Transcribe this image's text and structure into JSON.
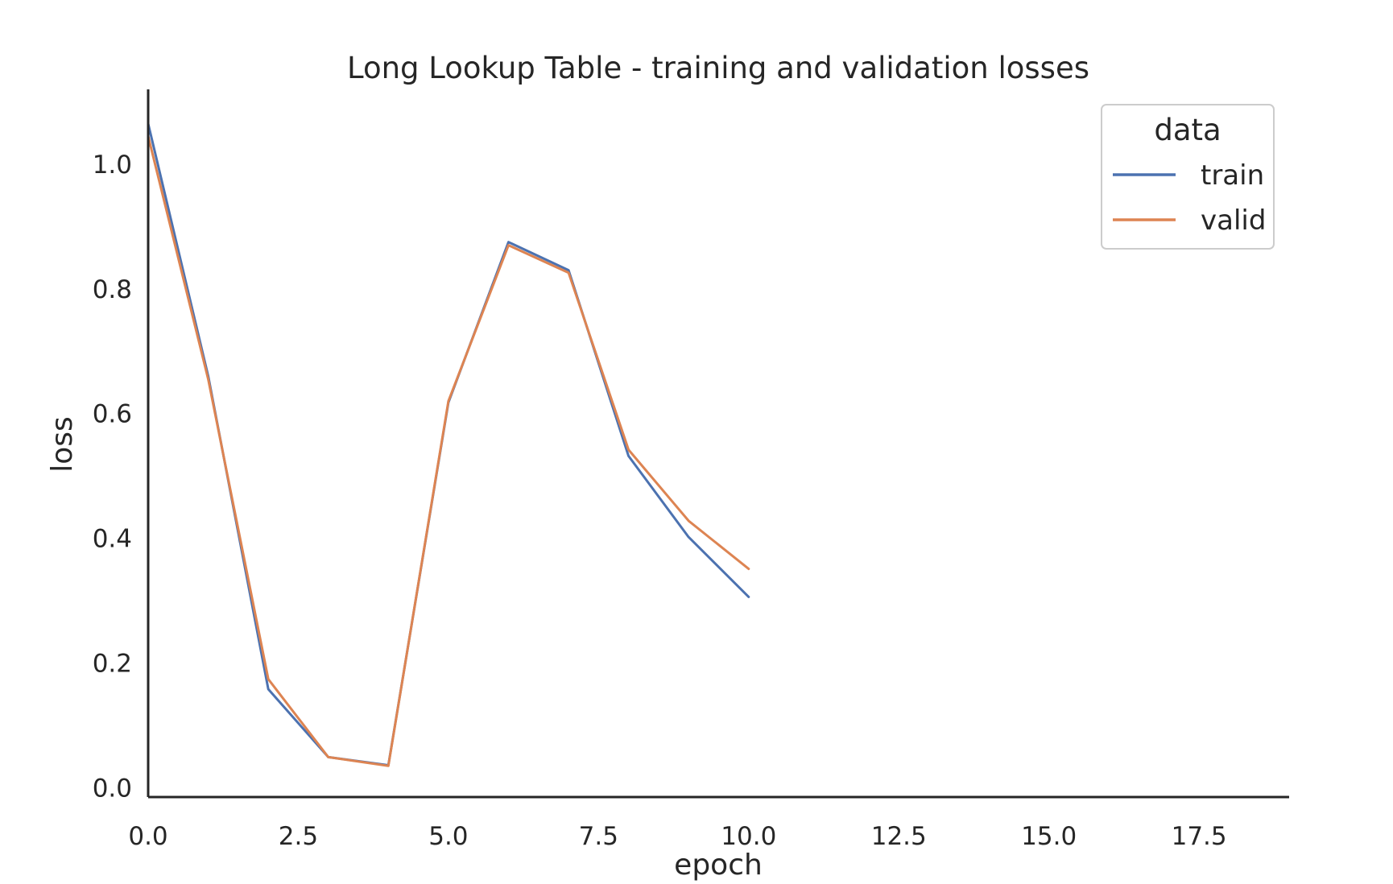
{
  "chart_data": {
    "type": "line",
    "title": "Long Lookup Table - training and validation losses",
    "xlabel": "epoch",
    "ylabel": "loss",
    "xlim": [
      0,
      19
    ],
    "ylim": [
      -0.015,
      1.12
    ],
    "xticks": [
      "0.0",
      "2.5",
      "5.0",
      "7.5",
      "10.0",
      "12.5",
      "15.0",
      "17.5"
    ],
    "xtick_values": [
      0,
      2.5,
      5,
      7.5,
      10,
      12.5,
      15,
      17.5
    ],
    "yticks": [
      "0.0",
      "0.2",
      "0.4",
      "0.6",
      "0.8",
      "1.0"
    ],
    "ytick_values": [
      0,
      0.2,
      0.4,
      0.6,
      0.8,
      1.0
    ],
    "grid": false,
    "legend": {
      "title": "data",
      "placement": "top-right"
    },
    "x": [
      0,
      1,
      2,
      3,
      4,
      5,
      6,
      7,
      8,
      9,
      10
    ],
    "series": [
      {
        "name": "train",
        "color": "#4c72b0",
        "values": [
          1.065,
          0.66,
          0.158,
          0.049,
          0.036,
          0.618,
          0.875,
          0.83,
          0.532,
          0.402,
          0.306
        ]
      },
      {
        "name": "valid",
        "color": "#dd8452",
        "values": [
          1.045,
          0.655,
          0.174,
          0.049,
          0.035,
          0.62,
          0.87,
          0.826,
          0.542,
          0.428,
          0.351
        ]
      }
    ]
  }
}
